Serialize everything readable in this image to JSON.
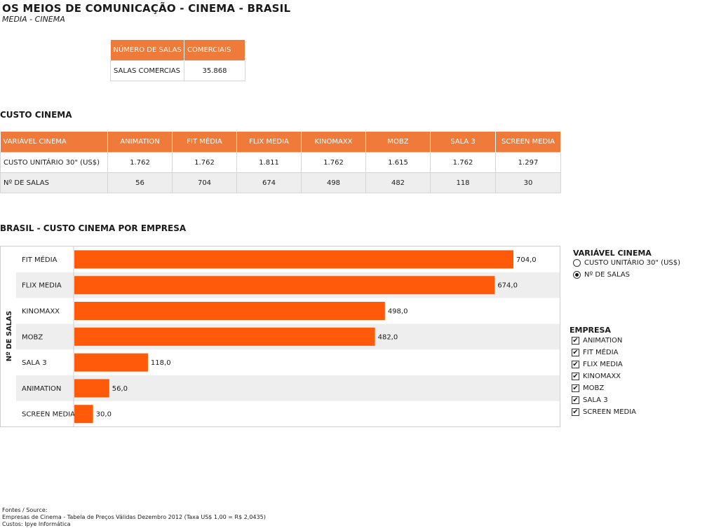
{
  "page": {
    "title": "OS MEIOS DE COMUNICAÇÃO - CINEMA - BRASIL",
    "subtitle": "MEDIA - CINEMA"
  },
  "salas_table": {
    "headers": [
      "NÚMERO DE SALAS",
      "COMERCIAIS"
    ],
    "rows": [
      [
        "SALAS COMERCIAS",
        "35.868"
      ]
    ]
  },
  "custo_section_title": "CUSTO CINEMA",
  "custo_table": {
    "headers": [
      "VARIÁVEL CINEMA",
      "ANIMATION",
      "FIT MÉDIA",
      "FLIX MEDIA",
      "KINOMAXX",
      "MOBZ",
      "SALA 3",
      "SCREEN MEDIA"
    ],
    "rows": [
      [
        "CUSTO UNITÁRIO 30\" (US$)",
        "1.762",
        "1.762",
        "1.811",
        "1.762",
        "1.615",
        "1.762",
        "1.297"
      ],
      [
        "Nº DE SALAS",
        "56",
        "704",
        "674",
        "498",
        "482",
        "118",
        "30"
      ]
    ]
  },
  "chart_section_title": "BRASIL - CUSTO CINEMA POR EMPRESA",
  "chart_data": {
    "type": "bar",
    "orientation": "horizontal",
    "categories": [
      "FIT MÉDIA",
      "FLIX MEDIA",
      "KINOMAXX",
      "MOBZ",
      "SALA 3",
      "ANIMATION",
      "SCREEN MEDIA"
    ],
    "values": [
      704.0,
      674.0,
      498.0,
      482.0,
      118.0,
      56.0,
      30.0
    ],
    "value_labels": [
      "704,0",
      "674,0",
      "498,0",
      "482,0",
      "118,0",
      "56,0",
      "30,0"
    ],
    "ylabel": "Nº DE SALAS",
    "xlim": [
      0,
      704
    ],
    "bar_color": "#ff5a0a",
    "alt_row_color": "#eeeeee"
  },
  "variable_filter": {
    "title": "VARIÁVEL CINEMA",
    "options": [
      {
        "label": "CUSTO UNITÁRIO 30\" (US$)",
        "selected": false
      },
      {
        "label": "Nº DE SALAS",
        "selected": true
      }
    ]
  },
  "empresa_filter": {
    "title": "EMPRESA",
    "items": [
      {
        "label": "ANIMATION",
        "checked": true
      },
      {
        "label": "FIT MÉDIA",
        "checked": true
      },
      {
        "label": "FLIX MEDIA",
        "checked": true
      },
      {
        "label": "KINOMAXX",
        "checked": true
      },
      {
        "label": "MOBZ",
        "checked": true
      },
      {
        "label": "SALA 3",
        "checked": true
      },
      {
        "label": "SCREEN MEDIA",
        "checked": true
      }
    ]
  },
  "footer": {
    "lines": [
      "Fontes / Source:",
      "Empresas de Cinema - Tabela de Preços Válidas Dezembro 2012 (Taxa US$ 1,00 = R$ 2,0435)",
      "Custos: Ipye Informática"
    ]
  },
  "colors": {
    "header_orange": "#f07a3a",
    "bar_orange": "#ff5a0a"
  }
}
